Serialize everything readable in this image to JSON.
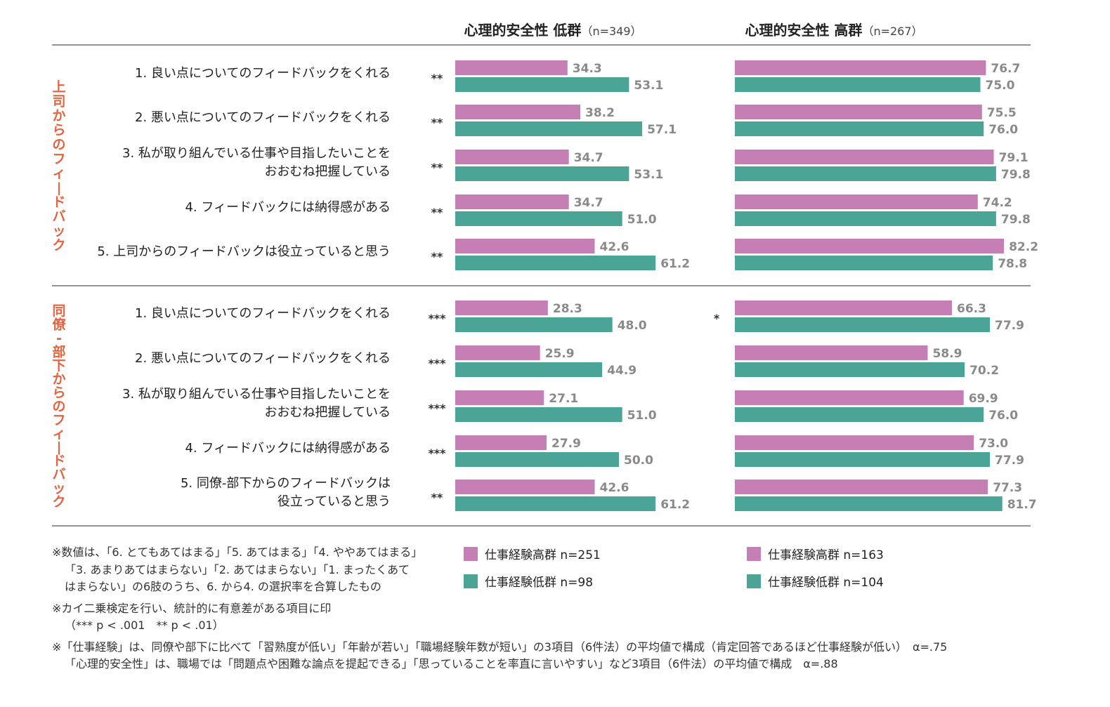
{
  "chart_data": {
    "type": "bar",
    "orientation": "horizontal",
    "panels": [
      {
        "title": "心理的安全性 低群",
        "n_label": "（n=349）"
      },
      {
        "title": "心理的安全性 高群",
        "n_label": "（n=267）"
      }
    ],
    "sections": [
      {
        "label": "上司からのフィードバック",
        "items": [
          {
            "lines": [
              "1. 良い点についてのフィードバックをくれる"
            ],
            "sig": [
              "**",
              ""
            ],
            "values": [
              [
                34.3,
                53.1
              ],
              [
                76.7,
                75.0
              ]
            ],
            "labels": [
              [
                "34.3",
                "53.1"
              ],
              [
                "76.7",
                "75.0"
              ]
            ]
          },
          {
            "lines": [
              "2. 悪い点についてのフィードバックをくれる"
            ],
            "sig": [
              "**",
              ""
            ],
            "values": [
              [
                38.2,
                57.1
              ],
              [
                75.5,
                76.0
              ]
            ],
            "labels": [
              [
                "38.2",
                "57.1"
              ],
              [
                "75.5",
                "76.0"
              ]
            ]
          },
          {
            "lines": [
              "3. 私が取り組んでいる仕事や目指したいことを",
              "おおむね把握している"
            ],
            "sig": [
              "**",
              ""
            ],
            "values": [
              [
                34.7,
                53.1
              ],
              [
                79.1,
                79.8
              ]
            ],
            "labels": [
              [
                "34.7",
                "53.1"
              ],
              [
                "79.1",
                "79.8"
              ]
            ]
          },
          {
            "lines": [
              "4. フィードバックには納得感がある"
            ],
            "sig": [
              "**",
              ""
            ],
            "values": [
              [
                34.7,
                51.0
              ],
              [
                74.2,
                79.8
              ]
            ],
            "labels": [
              [
                "34.7",
                "51.0"
              ],
              [
                "74.2",
                "79.8"
              ]
            ]
          },
          {
            "lines": [
              "5. 上司からのフィードバックは役立っていると思う"
            ],
            "sig": [
              "**",
              ""
            ],
            "values": [
              [
                42.6,
                61.2
              ],
              [
                82.2,
                78.8
              ]
            ],
            "labels": [
              [
                "42.6",
                "61.2"
              ],
              [
                "82.2",
                "78.8"
              ]
            ]
          }
        ]
      },
      {
        "label": "同僚‐部下からのフィードバック",
        "items": [
          {
            "lines": [
              "1. 良い点についてのフィードバックをくれる"
            ],
            "sig": [
              "***",
              "*"
            ],
            "values": [
              [
                28.3,
                48.0
              ],
              [
                66.3,
                77.9
              ]
            ],
            "labels": [
              [
                "28.3",
                "48.0"
              ],
              [
                "66.3",
                "77.9"
              ]
            ]
          },
          {
            "lines": [
              "2. 悪い点についてのフィードバックをくれる"
            ],
            "sig": [
              "***",
              ""
            ],
            "values": [
              [
                25.9,
                44.9
              ],
              [
                58.9,
                70.2
              ]
            ],
            "labels": [
              [
                "25.9",
                "44.9"
              ],
              [
                "58.9",
                "70.2"
              ]
            ]
          },
          {
            "lines": [
              "3. 私が取り組んでいる仕事や目指したいことを",
              "おおむね把握している"
            ],
            "sig": [
              "***",
              ""
            ],
            "values": [
              [
                27.1,
                51.0
              ],
              [
                69.9,
                76.0
              ]
            ],
            "labels": [
              [
                "27.1",
                "51.0"
              ],
              [
                "69.9",
                "76.0"
              ]
            ]
          },
          {
            "lines": [
              "4. フィードバックには納得感がある"
            ],
            "sig": [
              "***",
              ""
            ],
            "values": [
              [
                27.9,
                50.0
              ],
              [
                73.0,
                77.9
              ]
            ],
            "labels": [
              [
                "27.9",
                "50.0"
              ],
              [
                "73.0",
                "77.9"
              ]
            ]
          },
          {
            "lines": [
              "5. 同僚‐部下からのフィードバックは",
              "役立っていると思う"
            ],
            "sig": [
              "**",
              ""
            ],
            "values": [
              [
                42.6,
                61.2
              ],
              [
                77.3,
                81.7
              ]
            ],
            "labels": [
              [
                "42.6",
                "61.2"
              ],
              [
                "77.3",
                "81.7"
              ]
            ]
          }
        ]
      }
    ],
    "legend": [
      [
        "仕事経験高群 n=251",
        "仕事経験低群 n=98"
      ],
      [
        "仕事経験高群 n=163",
        "仕事経験低群 n=104"
      ]
    ],
    "colors": {
      "high": "#c67fb5",
      "low": "#4ba596",
      "section_label": "#e3643f",
      "value_label": "#8a8a8a",
      "rule": "#555555"
    },
    "xlim": [
      0,
      100
    ]
  },
  "notes": [
    "※数値は、「6. とてもあてはまる」「5. あてはまる」「4. ややあてはまる」",
    "「3. あまりあてはまらない」「2. あてはまらない」「1. まったくあて",
    "はまらない」の6肢のうち、6. から4. の選択率を合算したもの",
    "※カイ二乗検定を行い、統計的に有意差がある項目に印",
    "（*** p < .001　** p < .01）",
    "※「仕事経験」は、同僚や部下に比べて「習熟度が低い」「年齢が若い」「職場経験年数が短い」の3項目（6件法）の平均値で構成（肯定回答であるほど仕事経験が低い）　α=.75",
    "「心理的安全性」は、職場では「問題点や困難な論点を提起できる」「思っていることを率直に言いやすい」など3項目（6件法）の平均値で構成　α=.88"
  ]
}
